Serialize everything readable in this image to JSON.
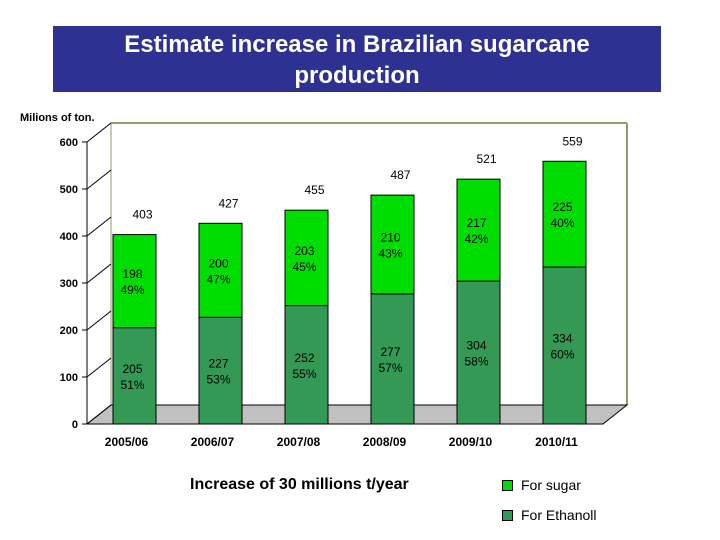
{
  "title_line1": "Estimate increase in Brazilian sugarcane",
  "title_line2": "production",
  "units_label": "Milions of ton.",
  "subtitle": "Increase of 30 millions t/year",
  "colors": {
    "sugar": "#00dd00",
    "ethanol": "#339955",
    "floor": "#c0c0c0",
    "frame": "#999966"
  },
  "chart_data": {
    "type": "bar",
    "stacked": true,
    "categories": [
      "2005/06",
      "2006/07",
      "2007/08",
      "2008/09",
      "2009/10",
      "2010/11"
    ],
    "ylim": [
      0,
      600
    ],
    "yticks": [
      0,
      100,
      200,
      300,
      400,
      500,
      600
    ],
    "series": [
      {
        "name": "For Ethanoll",
        "values": [
          205,
          227,
          252,
          277,
          304,
          334
        ],
        "pct": [
          "51%",
          "53%",
          "55%",
          "57%",
          "58%",
          "60%"
        ]
      },
      {
        "name": "For sugar",
        "values": [
          198,
          200,
          203,
          210,
          217,
          225
        ],
        "pct": [
          "49%",
          "47%",
          "45%",
          "43%",
          "42%",
          "40%"
        ]
      }
    ],
    "totals": [
      403,
      427,
      455,
      487,
      521,
      559
    ],
    "legend": [
      "For sugar",
      "For Ethanoll"
    ]
  }
}
